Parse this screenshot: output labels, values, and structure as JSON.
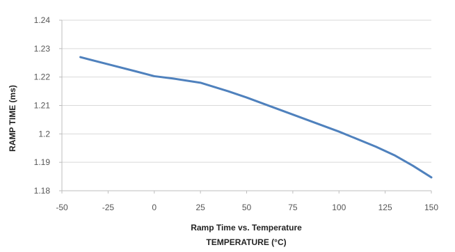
{
  "chart_data": {
    "type": "line",
    "title": "Ramp Time vs. Temperature",
    "xlabel": "TEMPERATURE (°C)",
    "ylabel": "RAMP TIME (ms)",
    "xlim": [
      -50,
      150
    ],
    "ylim": [
      1.18,
      1.24
    ],
    "x_ticks": [
      -50,
      -25,
      0,
      25,
      50,
      75,
      100,
      125,
      150
    ],
    "y_ticks": [
      1.18,
      1.19,
      1.2,
      1.21,
      1.22,
      1.23,
      1.24
    ],
    "x_tick_labels": [
      "-50",
      "-25",
      "0",
      "25",
      "50",
      "75",
      "100",
      "125",
      "150"
    ],
    "y_tick_labels": [
      "1.18",
      "1.19",
      "1.2",
      "1.21",
      "1.22",
      "1.23",
      "1.24"
    ],
    "grid": true,
    "legend": "none",
    "line_color": "#4f81bd",
    "series": [
      {
        "x": [
          -40,
          -25,
          -10,
          0,
          10,
          25,
          40,
          50,
          75,
          100,
          120,
          130,
          140,
          150
        ],
        "values": [
          1.227,
          1.2245,
          1.222,
          1.2203,
          1.2195,
          1.218,
          1.215,
          1.2128,
          1.2068,
          1.2008,
          1.1955,
          1.1925,
          1.1888,
          1.1847
        ]
      }
    ]
  }
}
